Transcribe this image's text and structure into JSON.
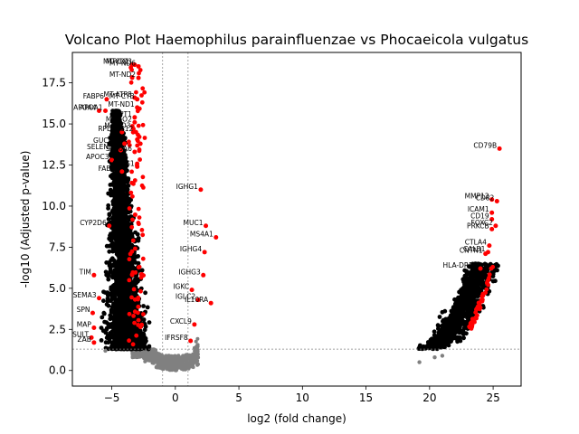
{
  "chart_data": {
    "type": "scatter",
    "title": "Volcano Plot Haemophilus parainfluenzae vs Phocaeicola vulgatus",
    "xlabel": "log2 (fold change)",
    "ylabel": "-log10 (Adjusted p-value)",
    "xlim": [
      -8.1,
      27.2
    ],
    "ylim": [
      -0.95,
      19.35
    ],
    "xticks": [
      -5,
      0,
      5,
      10,
      15,
      20,
      25
    ],
    "yticks": [
      0.0,
      2.5,
      5.0,
      7.5,
      10.0,
      12.5,
      15.0,
      17.5
    ],
    "xtick_labels": [
      "−5",
      "0",
      "5",
      "10",
      "15",
      "20",
      "25"
    ],
    "ytick_labels": [
      "0.0",
      "2.5",
      "5.0",
      "7.5",
      "10.0",
      "12.5",
      "15.0",
      "17.5"
    ],
    "grid": false,
    "thresholds": {
      "fold_change_x": [
        -1,
        1
      ],
      "pvalue_y": 1.3
    },
    "colors": {
      "significant": "#ff0000",
      "nonsignificant": "#808080",
      "up_cluster": "#000000",
      "down_cluster": "#000000"
    },
    "labeled_points": [
      {
        "label": "MT-CO1",
        "x": -3.4,
        "y": 18.6
      },
      {
        "label": "MT-CO3",
        "x": -3.2,
        "y": 18.6
      },
      {
        "label": "MT-ND6",
        "x": -2.9,
        "y": 18.5
      },
      {
        "label": "MT-ND2",
        "x": -2.9,
        "y": 17.8
      },
      {
        "label": "FABP6",
        "x": -5.4,
        "y": 16.5
      },
      {
        "label": "MT-ATP8",
        "x": -3.2,
        "y": 16.6
      },
      {
        "label": "MT-CYB",
        "x": -3.0,
        "y": 16.5
      },
      {
        "label": "APOA4",
        "x": -6.0,
        "y": 15.8
      },
      {
        "label": "APOA1",
        "x": -5.5,
        "y": 15.8
      },
      {
        "label": "MT-ND1",
        "x": -3.0,
        "y": 16.0
      },
      {
        "label": "TPT1",
        "x": -3.2,
        "y": 15.4
      },
      {
        "label": "MT-CO2",
        "x": -3.2,
        "y": 15.1
      },
      {
        "label": "MT-ND3",
        "x": -3.3,
        "y": 14.7
      },
      {
        "label": "RPL13",
        "x": -4.2,
        "y": 14.5
      },
      {
        "label": "RPS12",
        "x": -3.1,
        "y": 14.5
      },
      {
        "label": "GUCA2A",
        "x": -4.0,
        "y": 13.8
      },
      {
        "label": "SELENOP",
        "x": -4.3,
        "y": 13.4
      },
      {
        "label": "S100A6",
        "x": -3.2,
        "y": 13.3
      },
      {
        "label": "APOC3",
        "x": -5.0,
        "y": 12.8
      },
      {
        "label": "ACTG1",
        "x": -3.0,
        "y": 12.4
      },
      {
        "label": "FABP1",
        "x": -4.2,
        "y": 12.1
      },
      {
        "label": "CD79B",
        "x": 25.5,
        "y": 13.5
      },
      {
        "label": "IGHG1",
        "x": 2.0,
        "y": 11.0
      },
      {
        "label": "MMP12",
        "x": 24.9,
        "y": 10.4
      },
      {
        "label": "CD82",
        "x": 25.3,
        "y": 10.3
      },
      {
        "label": "ICAM1",
        "x": 24.9,
        "y": 9.6
      },
      {
        "label": "CD19",
        "x": 24.9,
        "y": 9.2
      },
      {
        "label": "FOXC2",
        "x": 25.2,
        "y": 8.8
      },
      {
        "label": "PRKCB",
        "x": 24.9,
        "y": 8.6
      },
      {
        "label": "MUC1",
        "x": 2.4,
        "y": 8.8
      },
      {
        "label": "CYP2D6",
        "x": -5.2,
        "y": 8.8
      },
      {
        "label": "MS4A1",
        "x": 3.2,
        "y": 8.1
      },
      {
        "label": "IGHG4",
        "x": 2.3,
        "y": 7.2
      },
      {
        "label": "CTLA4",
        "x": 24.7,
        "y": 7.6
      },
      {
        "label": "CALB1",
        "x": 24.6,
        "y": 7.2
      },
      {
        "label": "CNTN1",
        "x": 24.4,
        "y": 7.1
      },
      {
        "label": "HLA-DRB1",
        "x": 24.0,
        "y": 6.2
      },
      {
        "label": "IGHG3",
        "x": 2.2,
        "y": 5.8
      },
      {
        "label": "IGKC",
        "x": 1.3,
        "y": 4.9
      },
      {
        "label": "IGLC2",
        "x": 1.8,
        "y": 4.3
      },
      {
        "label": "IL10RA",
        "x": 2.8,
        "y": 4.1
      },
      {
        "label": "CXCL9",
        "x": 1.5,
        "y": 2.8
      },
      {
        "label": "IFRSF8",
        "x": 1.2,
        "y": 1.8
      },
      {
        "label": "SEMA3",
        "x": -6.0,
        "y": 4.4
      },
      {
        "label": "SPN",
        "x": -6.5,
        "y": 3.5
      },
      {
        "label": "MAP",
        "x": -6.4,
        "y": 2.6
      },
      {
        "label": "SULT",
        "x": -6.6,
        "y": 2.0
      },
      {
        "label": "ZAB",
        "x": -6.4,
        "y": 1.7
      },
      {
        "label": "TIM",
        "x": -6.4,
        "y": 5.8
      }
    ]
  }
}
